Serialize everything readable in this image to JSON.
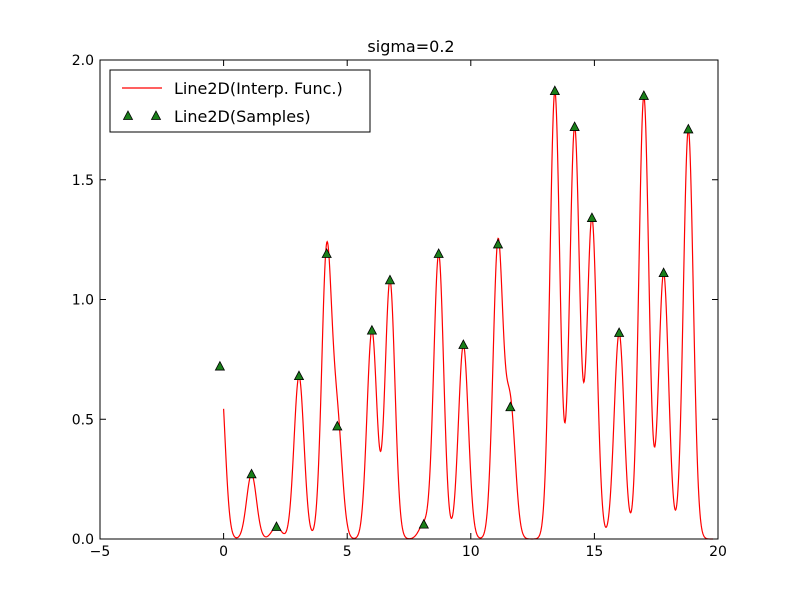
{
  "chart_data": {
    "type": "line",
    "title": "sigma=0.2",
    "xlabel": "",
    "ylabel": "",
    "xlim": [
      -5,
      20
    ],
    "ylim": [
      0.0,
      2.0
    ],
    "x_ticks": [
      -5,
      0,
      5,
      10,
      15,
      20
    ],
    "x_tick_labels": [
      "−5",
      "0",
      "5",
      "10",
      "15",
      "20"
    ],
    "y_ticks": [
      0.0,
      0.5,
      1.0,
      1.5,
      2.0
    ],
    "y_tick_labels": [
      "0.0",
      "0.5",
      "1.0",
      "1.5",
      "2.0"
    ],
    "grid": false,
    "legend": {
      "placement": "top-left",
      "entries": [
        {
          "label": "Line2D(Interp. Func.)",
          "style": "line",
          "color": "#ff0000"
        },
        {
          "label": "Line2D(Samples)",
          "style": "triangle-marker",
          "color": "#1a7f1a"
        }
      ]
    },
    "series": [
      {
        "name": "Line2D(Interp. Func.)",
        "kind": "line",
        "color": "#ff0000",
        "x_range": [
          0,
          19.8
        ],
        "sigma": 0.2
      },
      {
        "name": "Line2D(Samples)",
        "kind": "scatter",
        "marker": "triangle",
        "color": "#1a7f1a",
        "x": [
          -0.15,
          1.13,
          2.14,
          3.05,
          4.17,
          4.6,
          6.0,
          6.73,
          8.1,
          8.7,
          9.7,
          11.1,
          11.6,
          13.4,
          14.2,
          14.9,
          16.0,
          17.0,
          17.8,
          18.8
        ],
        "y": [
          0.72,
          0.27,
          0.05,
          0.68,
          1.19,
          0.47,
          0.87,
          1.08,
          0.06,
          1.19,
          0.81,
          1.23,
          0.55,
          1.87,
          1.72,
          1.34,
          0.86,
          1.85,
          1.11,
          1.71
        ]
      }
    ]
  }
}
